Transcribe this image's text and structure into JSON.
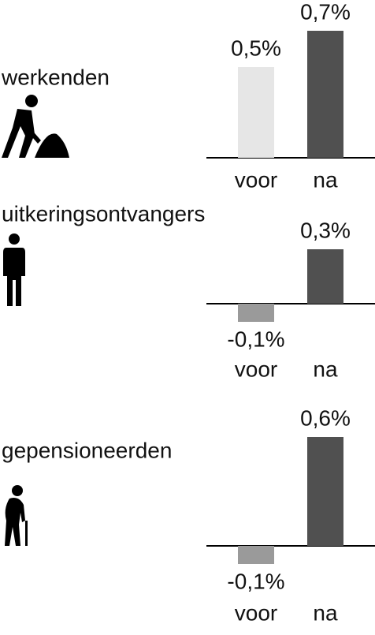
{
  "chart_data": [
    {
      "type": "bar",
      "title": "werkenden",
      "categories": [
        "voor",
        "na"
      ],
      "values": [
        0.5,
        0.7
      ],
      "value_labels": [
        "0,5%",
        "0,7%"
      ],
      "colors": [
        "#e6e6e6",
        "#505050"
      ]
    },
    {
      "type": "bar",
      "title": "uitkeringsontvangers",
      "categories": [
        "voor",
        "na"
      ],
      "values": [
        -0.1,
        0.3
      ],
      "value_labels": [
        "-0,1%",
        "0,3%"
      ],
      "colors": [
        "#9a9a9a",
        "#505050"
      ]
    },
    {
      "type": "bar",
      "title": "gepensioneerden",
      "categories": [
        "voor",
        "na"
      ],
      "values": [
        -0.1,
        0.6
      ],
      "value_labels": [
        "-0,1%",
        "0,6%"
      ],
      "colors": [
        "#9a9a9a",
        "#505050"
      ]
    }
  ]
}
